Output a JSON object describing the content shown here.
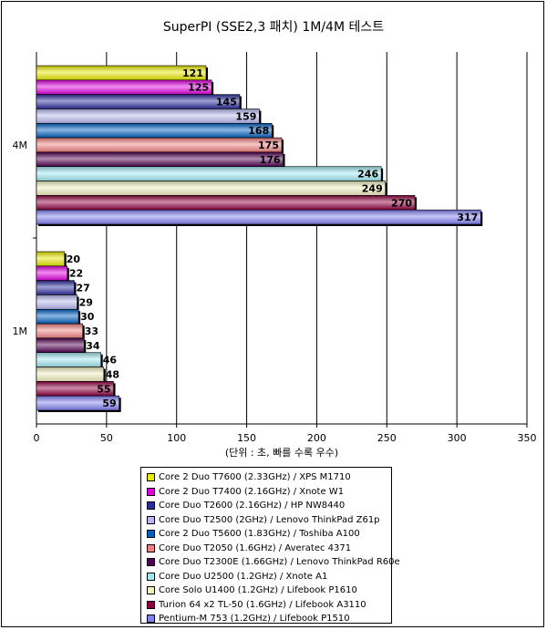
{
  "chart_data": {
    "type": "bar",
    "orientation": "horizontal",
    "title": "SuperPI (SSE2,3 패치) 1M/4M 테스트",
    "xlabel": "(단위 : 초, 빠를 수록 우수)",
    "ylabel": "",
    "xlim": [
      0,
      350
    ],
    "xticks": [
      0,
      50,
      100,
      150,
      200,
      250,
      300,
      350
    ],
    "grid": "vertical",
    "legend_position": "bottom",
    "categories": [
      "4M",
      "1M"
    ],
    "series": [
      {
        "name": "Core 2 Duo T7600 (2.33GHz) / XPS M1710",
        "color": "#e8e800",
        "values": [
          121,
          20
        ]
      },
      {
        "name": "Core 2 Duo T7400 (2.16GHz) / Xnote W1",
        "color": "#e000e0",
        "values": [
          125,
          22
        ]
      },
      {
        "name": "Core Duo T2600 (2.16GHz) / HP NW8440",
        "color": "#2c2c9c",
        "values": [
          145,
          27
        ]
      },
      {
        "name": "Core Duo T2500 (2GHz) / Lenovo ThinkPad Z61p",
        "color": "#b8b8f0",
        "values": [
          159,
          29
        ]
      },
      {
        "name": "Core 2 Duo T5600 (1.83GHz) / Toshiba A100",
        "color": "#0060c0",
        "values": [
          168,
          30
        ]
      },
      {
        "name": "Core Duo T2050 (1.6GHz) / Averatec 4371",
        "color": "#f08080",
        "values": [
          175,
          33
        ]
      },
      {
        "name": "Core Duo T2300E (1.66GHz) / Lenovo ThinkPad R60e",
        "color": "#500050",
        "values": [
          176,
          34
        ]
      },
      {
        "name": "Core Duo U2500 (1.2GHz) / Xnote A1",
        "color": "#a0e8f0",
        "values": [
          246,
          46
        ]
      },
      {
        "name": "Core Solo U1400 (1.2GHz) / Lifebook P1610",
        "color": "#f0f0c0",
        "values": [
          249,
          48
        ]
      },
      {
        "name": "Turion 64 x2 TL-50 (1.6GHz) / Lifebook A3110",
        "color": "#900040",
        "values": [
          270,
          55
        ]
      },
      {
        "name": "Pentium-M 753 (1.2GHz) / Lifebook P1510",
        "color": "#8080f0",
        "values": [
          317,
          59
        ]
      }
    ]
  }
}
